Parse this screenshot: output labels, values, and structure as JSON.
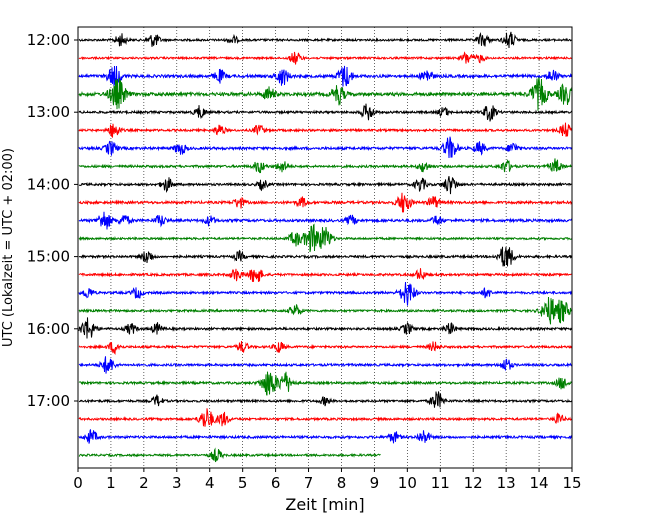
{
  "chart_data": {
    "type": "line",
    "title": "",
    "xlabel": "Zeit  [min]",
    "ylabel": "UTC (Lokalzeit = UTC + 02:00)",
    "xlim": [
      0,
      15
    ],
    "x_ticks": [
      "0",
      "1",
      "2",
      "3",
      "4",
      "5",
      "6",
      "7",
      "8",
      "9",
      "10",
      "11",
      "12",
      "13",
      "14",
      "15"
    ],
    "y_ticks": [
      "12:00",
      "13:00",
      "14:00",
      "15:00",
      "16:00",
      "17:00"
    ],
    "grid": "vertical dotted",
    "trace_interval_min": 15,
    "color_cycle": [
      "#000000",
      "#ff0000",
      "#0000ff",
      "#008000"
    ],
    "traces": [
      {
        "start": "12:00",
        "end_min": 15,
        "color": "#000000",
        "noise": 0.18,
        "events": [
          [
            1.3,
            0.9
          ],
          [
            2.3,
            1.0
          ],
          [
            12.3,
            1.0
          ],
          [
            13.1,
            1.2
          ],
          [
            4.7,
            0.6
          ]
        ]
      },
      {
        "start": "12:15",
        "end_min": 15,
        "color": "#ff0000",
        "noise": 0.16,
        "events": [
          [
            6.6,
            0.9
          ],
          [
            11.8,
            0.9
          ],
          [
            12.2,
            0.6
          ]
        ]
      },
      {
        "start": "12:30",
        "end_min": 15,
        "color": "#0000ff",
        "noise": 0.35,
        "events": [
          [
            1.1,
            1.5
          ],
          [
            4.3,
            0.9
          ],
          [
            6.2,
            1.3
          ],
          [
            8.1,
            1.6
          ],
          [
            10.6,
            1.0
          ],
          [
            14.4,
            0.9
          ]
        ]
      },
      {
        "start": "12:45",
        "end_min": 15,
        "color": "#008000",
        "noise": 0.45,
        "events": [
          [
            1.2,
            2.2
          ],
          [
            5.8,
            1.0
          ],
          [
            7.9,
            1.4
          ],
          [
            14.0,
            2.2
          ],
          [
            14.8,
            1.5
          ]
        ]
      },
      {
        "start": "13:00",
        "end_min": 15,
        "color": "#000000",
        "noise": 0.22,
        "events": [
          [
            3.7,
            0.9
          ],
          [
            8.8,
            1.2
          ],
          [
            12.5,
            1.2
          ],
          [
            11.1,
            0.7
          ]
        ]
      },
      {
        "start": "13:15",
        "end_min": 15,
        "color": "#ff0000",
        "noise": 0.2,
        "events": [
          [
            1.1,
            1.1
          ],
          [
            4.3,
            0.8
          ],
          [
            5.5,
            0.8
          ],
          [
            14.8,
            1.0
          ]
        ]
      },
      {
        "start": "13:30",
        "end_min": 15,
        "color": "#0000ff",
        "noise": 0.28,
        "events": [
          [
            1.0,
            1.0
          ],
          [
            3.1,
            0.9
          ],
          [
            11.3,
            1.6
          ],
          [
            12.2,
            0.9
          ],
          [
            13.2,
            0.8
          ]
        ]
      },
      {
        "start": "13:45",
        "end_min": 15,
        "color": "#008000",
        "noise": 0.22,
        "events": [
          [
            5.5,
            0.9
          ],
          [
            6.2,
            0.8
          ],
          [
            10.5,
            0.8
          ],
          [
            13.0,
            0.9
          ],
          [
            14.5,
            1.0
          ]
        ]
      },
      {
        "start": "14:00",
        "end_min": 15,
        "color": "#000000",
        "noise": 0.22,
        "events": [
          [
            2.7,
            1.0
          ],
          [
            10.4,
            1.0
          ],
          [
            11.3,
            1.3
          ],
          [
            5.6,
            0.7
          ]
        ]
      },
      {
        "start": "14:15",
        "end_min": 15,
        "color": "#ff0000",
        "noise": 0.28,
        "events": [
          [
            4.9,
            0.8
          ],
          [
            6.8,
            0.7
          ],
          [
            9.9,
            1.5
          ],
          [
            10.8,
            0.9
          ]
        ]
      },
      {
        "start": "14:30",
        "end_min": 15,
        "color": "#0000ff",
        "noise": 0.3,
        "events": [
          [
            0.8,
            1.4
          ],
          [
            1.4,
            0.9
          ],
          [
            2.5,
            0.8
          ],
          [
            4.0,
            0.7
          ],
          [
            8.3,
            0.7
          ],
          [
            10.9,
            0.7
          ]
        ]
      },
      {
        "start": "14:45",
        "end_min": 15,
        "color": "#008000",
        "noise": 0.16,
        "events": [
          [
            7.1,
            2.0
          ],
          [
            7.5,
            1.6
          ],
          [
            6.6,
            1.1
          ]
        ]
      },
      {
        "start": "15:00",
        "end_min": 15,
        "color": "#000000",
        "noise": 0.22,
        "events": [
          [
            2.1,
            1.0
          ],
          [
            13.0,
            1.8
          ],
          [
            4.9,
            0.7
          ]
        ]
      },
      {
        "start": "15:15",
        "end_min": 15,
        "color": "#ff0000",
        "noise": 0.22,
        "events": [
          [
            5.4,
            1.3
          ],
          [
            4.8,
            0.9
          ],
          [
            10.4,
            0.8
          ]
        ]
      },
      {
        "start": "15:30",
        "end_min": 15,
        "color": "#0000ff",
        "noise": 0.22,
        "events": [
          [
            0.3,
            0.8
          ],
          [
            1.8,
            0.8
          ],
          [
            10.0,
            1.8
          ],
          [
            12.4,
            0.7
          ]
        ]
      },
      {
        "start": "15:45",
        "end_min": 15,
        "color": "#008000",
        "noise": 0.2,
        "events": [
          [
            6.6,
            0.9
          ],
          [
            14.3,
            2.0
          ],
          [
            14.7,
            1.6
          ]
        ]
      },
      {
        "start": "16:00",
        "end_min": 15,
        "color": "#000000",
        "noise": 0.22,
        "events": [
          [
            0.3,
            1.6
          ],
          [
            1.6,
            0.8
          ],
          [
            2.4,
            0.8
          ],
          [
            10.0,
            0.8
          ],
          [
            11.3,
            0.8
          ]
        ]
      },
      {
        "start": "16:15",
        "end_min": 15,
        "color": "#ff0000",
        "noise": 0.2,
        "events": [
          [
            1.1,
            0.9
          ],
          [
            5.0,
            0.8
          ],
          [
            6.1,
            0.8
          ],
          [
            10.8,
            0.7
          ]
        ]
      },
      {
        "start": "16:30",
        "end_min": 15,
        "color": "#0000ff",
        "noise": 0.22,
        "events": [
          [
            0.9,
            1.3
          ],
          [
            13.0,
            0.9
          ]
        ]
      },
      {
        "start": "16:45",
        "end_min": 15,
        "color": "#008000",
        "noise": 0.22,
        "events": [
          [
            5.8,
            2.0
          ],
          [
            6.3,
            1.5
          ],
          [
            14.7,
            0.9
          ]
        ]
      },
      {
        "start": "17:00",
        "end_min": 15,
        "color": "#000000",
        "noise": 0.2,
        "events": [
          [
            2.4,
            0.8
          ],
          [
            10.9,
            1.3
          ],
          [
            7.5,
            0.6
          ]
        ]
      },
      {
        "start": "17:15",
        "end_min": 15,
        "color": "#ff0000",
        "noise": 0.2,
        "events": [
          [
            3.9,
            1.6
          ],
          [
            4.4,
            1.0
          ],
          [
            14.6,
            0.7
          ]
        ]
      },
      {
        "start": "17:30",
        "end_min": 15,
        "color": "#0000ff",
        "noise": 0.25,
        "events": [
          [
            0.4,
            1.0
          ],
          [
            9.6,
            0.8
          ],
          [
            10.5,
            1.0
          ]
        ]
      },
      {
        "start": "17:45",
        "end_min": 9.2,
        "color": "#008000",
        "noise": 0.18,
        "events": [
          [
            4.2,
            0.9
          ]
        ]
      }
    ]
  }
}
